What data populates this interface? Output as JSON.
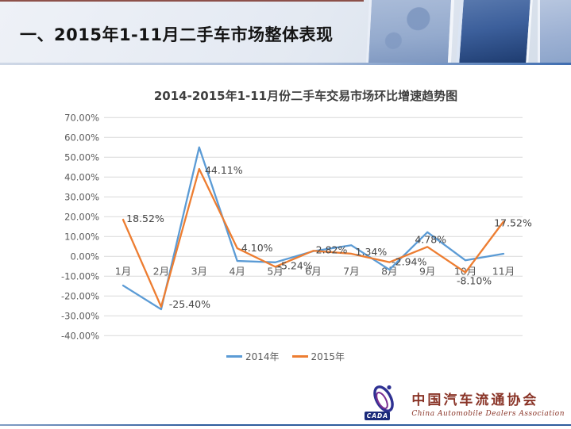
{
  "header": {
    "title": "一、2015年1-11月二手车市场整体表现"
  },
  "chart_data": {
    "type": "line",
    "title": "2014-2015年1-11月份二手车交易市场环比增速趋势图",
    "categories": [
      "1月",
      "2月",
      "3月",
      "4月",
      "5月",
      "6月",
      "7月",
      "8月",
      "9月",
      "10月",
      "11月"
    ],
    "series": [
      {
        "name": "2014年",
        "color": "#5B9BD5",
        "values": [
          -14.7,
          -26.7,
          55.0,
          -2.3,
          -3.0,
          2.6,
          5.6,
          -6.7,
          12.2,
          -2.0,
          1.3
        ]
      },
      {
        "name": "2015年",
        "color": "#ED7D31",
        "values": [
          18.52,
          -25.4,
          44.11,
          4.1,
          -5.24,
          2.82,
          1.34,
          -2.94,
          4.78,
          -8.1,
          17.52
        ],
        "labels": [
          "18.52%",
          "-25.40%",
          "44.11%",
          "4.10%",
          "-5.24%",
          "2.82%",
          "1.34%",
          "-2.94%",
          "4.78%",
          "-8.10%",
          "17.52%"
        ]
      }
    ],
    "xlabel": "",
    "ylabel": "",
    "y_axis": {
      "min": -40,
      "max": 70,
      "step": 10,
      "tick_labels": [
        "70.00%",
        "60.00%",
        "50.00%",
        "40.00%",
        "30.00%",
        "20.00%",
        "10.00%",
        "0.00%",
        "-10.00%",
        "-20.00%",
        "-30.00%",
        "-40.00%"
      ]
    },
    "grid": true,
    "legend_position": "bottom"
  },
  "footer": {
    "logo_acronym": "CADA",
    "org_name_cn": "中国汽车流通协会",
    "org_name_en": "China Automobile Dealers Association"
  },
  "colors": {
    "series_2014": "#5B9BD5",
    "series_2015": "#ED7D31",
    "gridline": "#d9d9d9",
    "axis_text": "#595959",
    "accent_maroon": "#7d352c",
    "bottom_rule_blue": "#2f5d9e"
  }
}
